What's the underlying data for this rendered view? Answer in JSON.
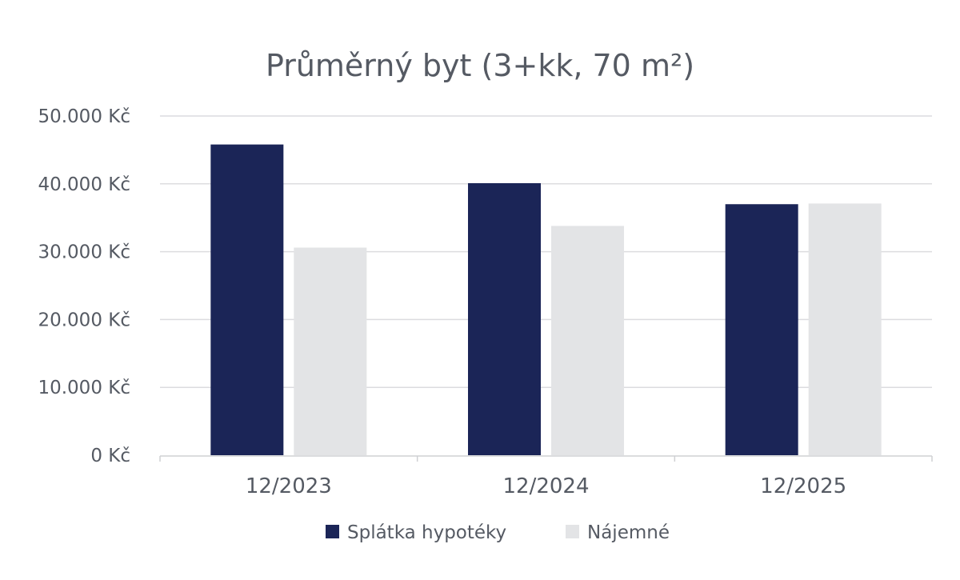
{
  "chart_data": {
    "type": "bar",
    "title": "Průměrný byt (3+kk, 70 m²)",
    "categories": [
      "12/2023",
      "12/2024",
      "12/2025"
    ],
    "series": [
      {
        "name": "Splátka hypotéky",
        "values": [
          45800,
          40100,
          37000
        ],
        "color": "#1b2557"
      },
      {
        "name": "Nájemné",
        "values": [
          30600,
          33800,
          37100
        ],
        "color": "#e3e4e6"
      }
    ],
    "y_ticks": [
      "0 Kč",
      "10.000 Kč",
      "20.000 Kč",
      "30.000 Kč",
      "40.000 Kč",
      "50.000 Kč"
    ],
    "ylim": [
      0,
      50000
    ],
    "grid": true,
    "legend_position": "bottom",
    "xlabel": "",
    "ylabel": ""
  }
}
